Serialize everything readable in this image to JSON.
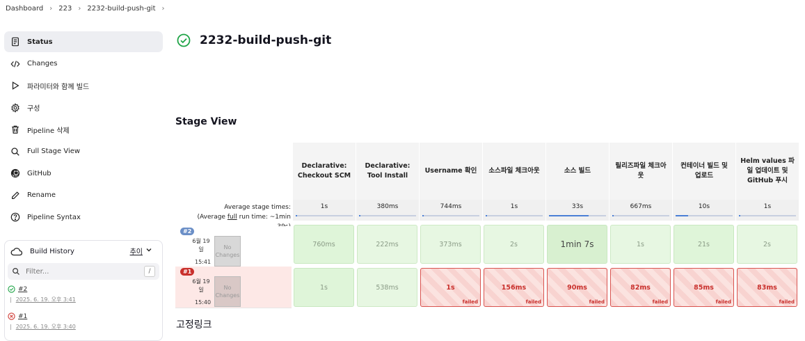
{
  "breadcrumb": [
    "Dashboard",
    "223",
    "2232-build-push-git"
  ],
  "sidebar": {
    "items": [
      {
        "label": "Status",
        "icon": "document-icon"
      },
      {
        "label": "Changes",
        "icon": "code-icon"
      },
      {
        "label": "파라미터와 함께 빌드",
        "icon": "play-icon"
      },
      {
        "label": "구성",
        "icon": "gear-icon"
      },
      {
        "label": "Pipeline 삭제",
        "icon": "trash-icon"
      },
      {
        "label": "Full Stage View",
        "icon": "search-icon"
      },
      {
        "label": "GitHub",
        "icon": "github-icon"
      },
      {
        "label": "Rename",
        "icon": "pencil-icon"
      },
      {
        "label": "Pipeline Syntax",
        "icon": "help-icon"
      }
    ]
  },
  "build_history": {
    "title": "Build History",
    "trend": "추이",
    "filter_placeholder": "Filter...",
    "shortcut": "/",
    "builds": [
      {
        "number": "#2",
        "status": "success",
        "date": "2025. 6. 19. 오후 3:41"
      },
      {
        "number": "#1",
        "status": "failed",
        "date": "2025. 6. 19. 오후 3:40"
      }
    ]
  },
  "page": {
    "title": "2232-build-push-git",
    "stage_view_heading": "Stage View",
    "permalinks_heading": "고정링크"
  },
  "stage_view": {
    "avg_label_1": "Average stage times:",
    "avg_label_2_pre": "(Average ",
    "avg_label_2_u": "full",
    "avg_label_2_post": " run time: ~1min",
    "avg_label_3": "39s)",
    "stages": [
      {
        "name": "Declarative: Checkout SCM",
        "avg": "1s",
        "avg_fraction": 0.02
      },
      {
        "name": "Declarative: Tool Install",
        "avg": "380ms",
        "avg_fraction": 0.01
      },
      {
        "name": "Username 확인",
        "avg": "744ms",
        "avg_fraction": 0.01
      },
      {
        "name": "소스파일 체크아웃",
        "avg": "1s",
        "avg_fraction": 0.02
      },
      {
        "name": "소스 빌드",
        "avg": "33s",
        "avg_fraction": 0.7
      },
      {
        "name": "릴리즈파일 체크아웃",
        "avg": "667ms",
        "avg_fraction": 0.01
      },
      {
        "name": "컨테이너 빌드 및 업로드",
        "avg": "10s",
        "avg_fraction": 0.22
      },
      {
        "name": "Helm values 파일 업데이트 및 GitHub 푸시",
        "avg": "1s",
        "avg_fraction": 0.02
      }
    ],
    "runs": [
      {
        "badge": "#2",
        "date": "6월 19 일",
        "time": "15:41",
        "changes": "No Changes",
        "status": "success",
        "cells": [
          "760ms",
          "222ms",
          "373ms",
          "2s",
          "1min 7s",
          "1s",
          "21s",
          "2s"
        ]
      },
      {
        "badge": "#1",
        "date": "6월 19 일",
        "time": "15:40",
        "changes": "No Changes",
        "status": "failed",
        "cells": [
          "1s",
          "538ms",
          "1s",
          "156ms",
          "90ms",
          "82ms",
          "85ms",
          "83ms"
        ],
        "failed_label": "failed"
      }
    ]
  }
}
